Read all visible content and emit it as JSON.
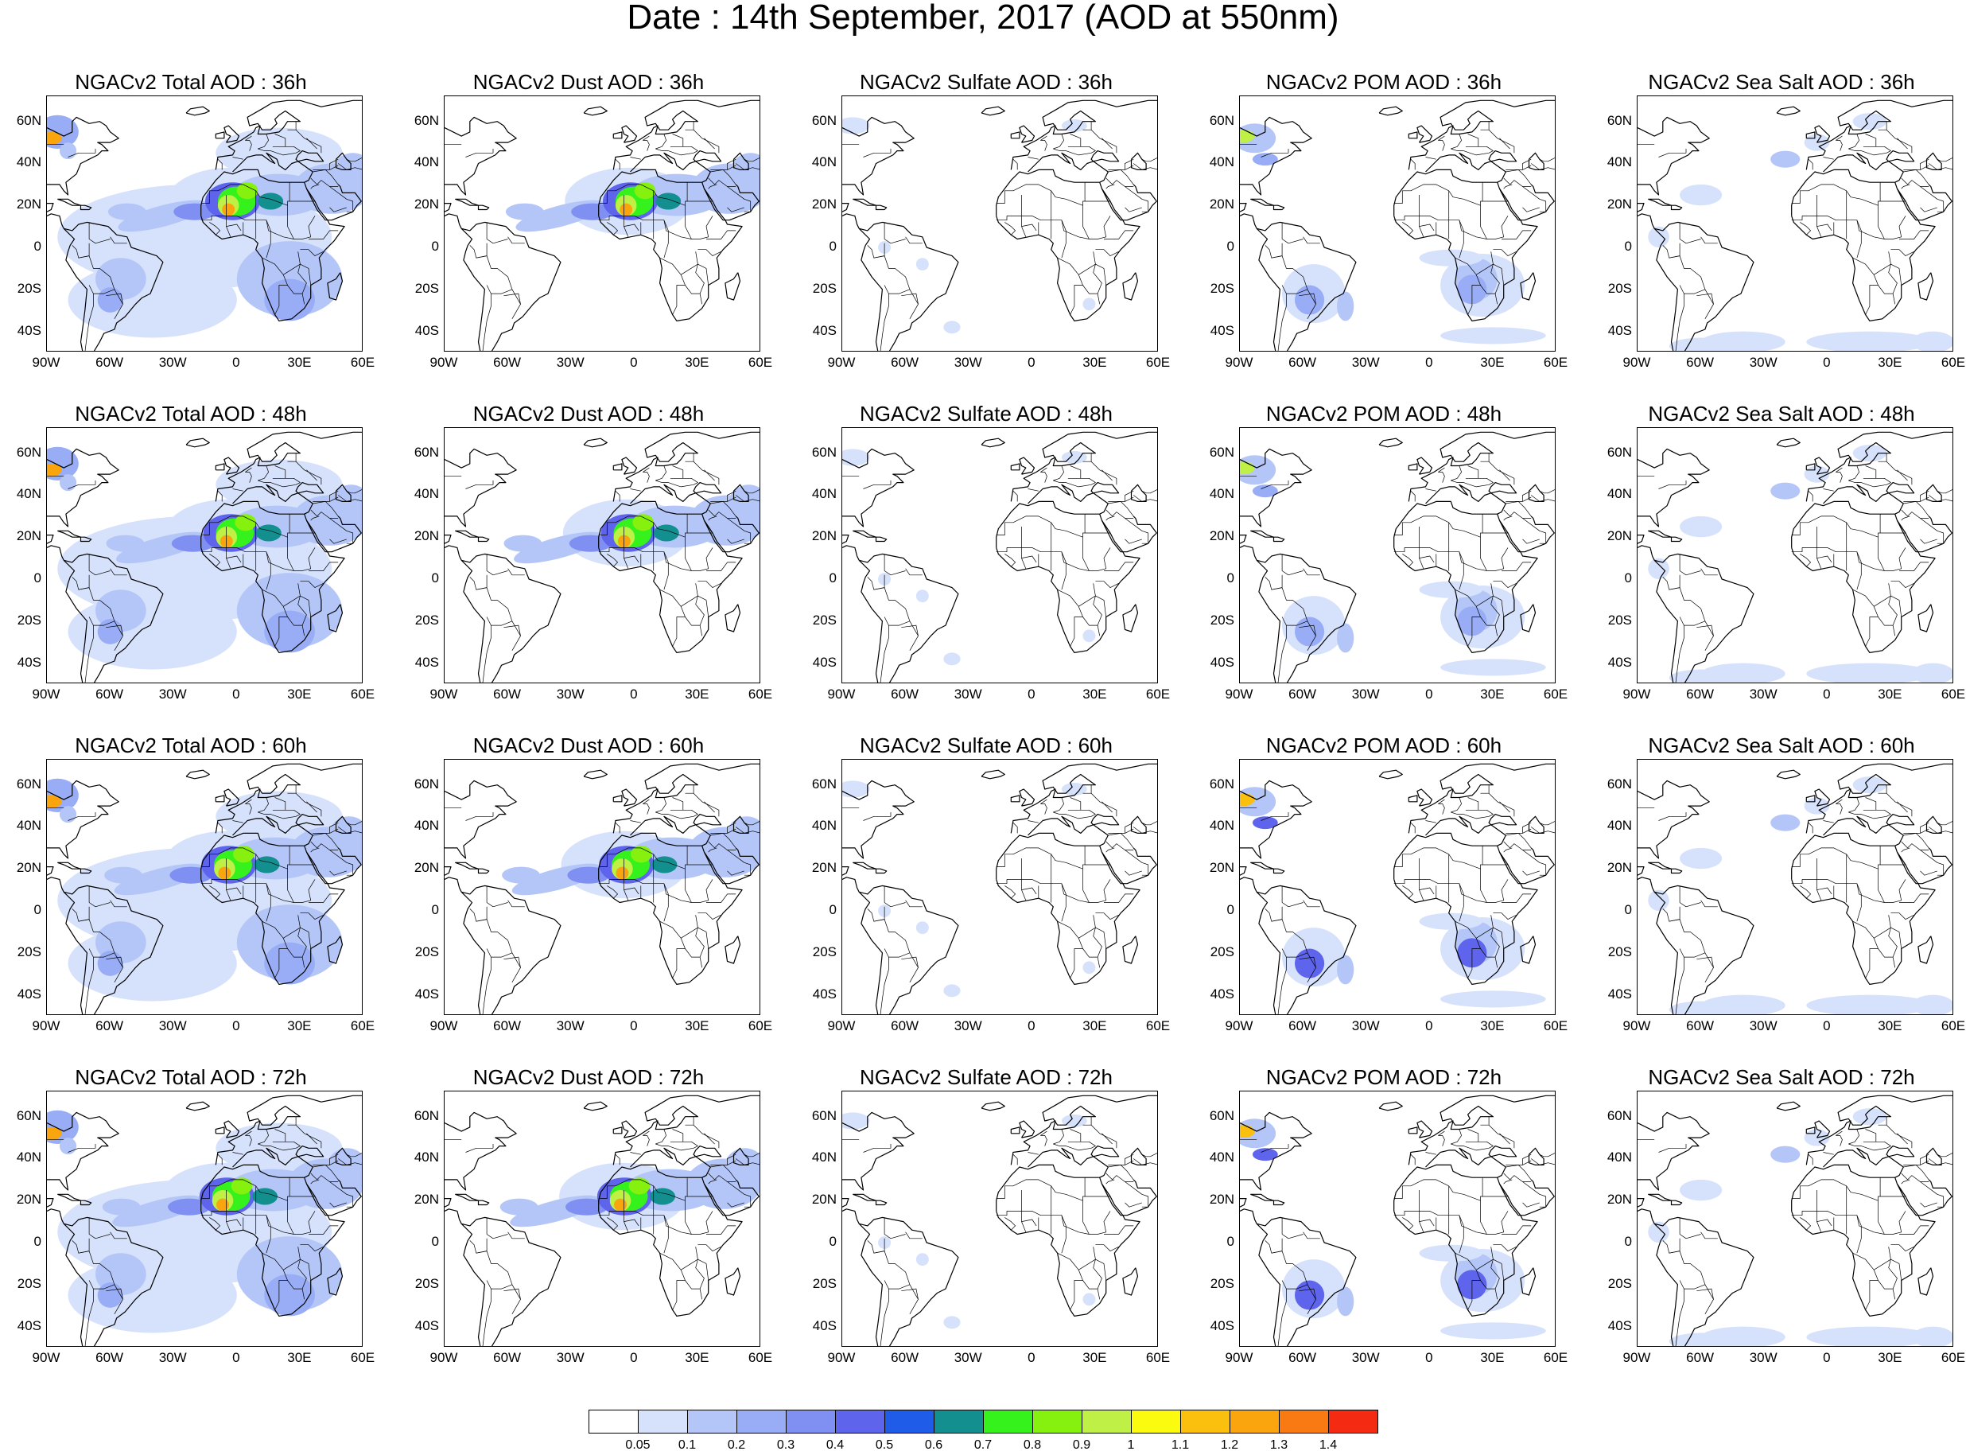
{
  "title": "Date : 14th September, 2017 (AOD at 550nm)",
  "forecast_hours": [
    "36h",
    "48h",
    "60h",
    "72h"
  ],
  "panels": [
    [
      {
        "title": "NGACv2 Total AOD : 36h",
        "species": "total"
      },
      {
        "title": "NGACv2 Dust AOD : 36h",
        "species": "dust"
      },
      {
        "title": "NGACv2 Sulfate AOD : 36h",
        "species": "sulfate"
      },
      {
        "title": "NGACv2 POM AOD : 36h",
        "species": "pom"
      },
      {
        "title": "NGACv2 Sea Salt AOD : 36h",
        "species": "seasalt"
      }
    ],
    [
      {
        "title": "NGACv2 Total AOD : 48h",
        "species": "total"
      },
      {
        "title": "NGACv2 Dust AOD : 48h",
        "species": "dust"
      },
      {
        "title": "NGACv2 Sulfate AOD : 48h",
        "species": "sulfate"
      },
      {
        "title": "NGACv2 POM AOD : 48h",
        "species": "pom"
      },
      {
        "title": "NGACv2 Sea Salt AOD : 48h",
        "species": "seasalt"
      }
    ],
    [
      {
        "title": "NGACv2 Total AOD : 60h",
        "species": "total"
      },
      {
        "title": "NGACv2 Dust AOD : 60h",
        "species": "dust"
      },
      {
        "title": "NGACv2 Sulfate AOD : 60h",
        "species": "sulfate"
      },
      {
        "title": "NGACv2 POM AOD : 60h",
        "species": "pom"
      },
      {
        "title": "NGACv2 Sea Salt AOD : 60h",
        "species": "seasalt"
      }
    ],
    [
      {
        "title": "NGACv2 Total AOD : 72h",
        "species": "total"
      },
      {
        "title": "NGACv2 Dust AOD : 72h",
        "species": "dust"
      },
      {
        "title": "NGACv2 Sulfate AOD : 72h",
        "species": "sulfate"
      },
      {
        "title": "NGACv2 POM AOD : 72h",
        "species": "pom"
      },
      {
        "title": "NGACv2 Sea Salt  AOD : 72h",
        "species": "seasalt"
      }
    ]
  ],
  "lat_ticks": [
    "60N",
    "40N",
    "20N",
    "0",
    "20S",
    "40S"
  ],
  "lon_ticks": [
    "90W",
    "60W",
    "30W",
    "0",
    "30E",
    "60E"
  ],
  "map_extent": {
    "lon_min": -90,
    "lon_max": 60,
    "lat_min": -50,
    "lat_max": 72
  },
  "colorbar": {
    "labels": [
      "0.05",
      "0.1",
      "0.2",
      "0.3",
      "0.4",
      "0.5",
      "0.6",
      "0.7",
      "0.8",
      "0.9",
      "1",
      "1.1",
      "1.2",
      "1.3",
      "1.4"
    ],
    "colors": [
      "#ffffff",
      "#d6e1fb",
      "#b4c6f8",
      "#98adf6",
      "#7f90f2",
      "#5e64ec",
      "#1f5de8",
      "#138f8f",
      "#36f21c",
      "#86f00e",
      "#bff045",
      "#fbfb10",
      "#fbc00e",
      "#fba50e",
      "#f97a12",
      "#f42a12"
    ]
  }
}
